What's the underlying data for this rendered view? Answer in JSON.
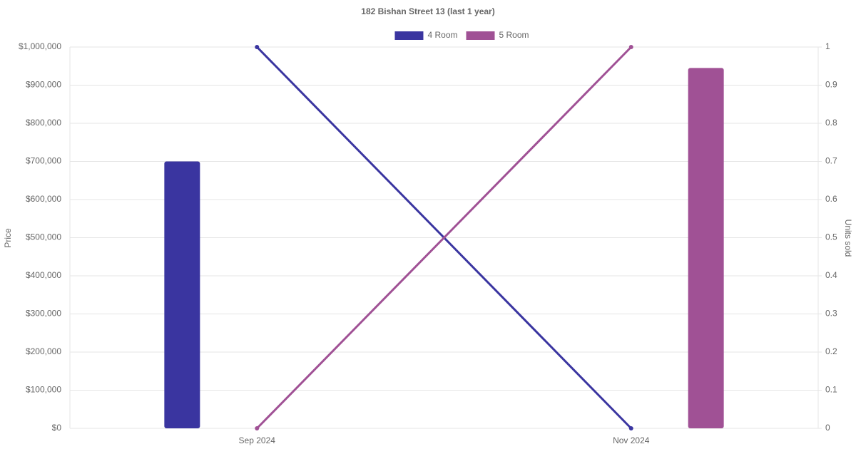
{
  "chart_data": {
    "type": "combo",
    "title": "182 Bishan Street 13 (last 1 year)",
    "y_label": "Price",
    "y2_label": "Units sold",
    "categories": [
      "Sep 2024",
      "Nov 2024"
    ],
    "series": [
      {
        "name": "4 Room",
        "color": "#3a35a0",
        "values": [
          700000,
          null
        ],
        "units_sold": [
          1,
          0
        ]
      },
      {
        "name": "5 Room",
        "color": "#a05195",
        "values": [
          null,
          945000
        ],
        "units_sold": [
          0,
          1
        ]
      }
    ],
    "ylim": [
      0,
      1000000
    ],
    "yticks": [
      {
        "value": 0,
        "label": "$0"
      },
      {
        "value": 100000,
        "label": "$100,000"
      },
      {
        "value": 200000,
        "label": "$200,000"
      },
      {
        "value": 300000,
        "label": "$300,000"
      },
      {
        "value": 400000,
        "label": "$400,000"
      },
      {
        "value": 500000,
        "label": "$500,000"
      },
      {
        "value": 600000,
        "label": "$600,000"
      },
      {
        "value": 700000,
        "label": "$700,000"
      },
      {
        "value": 800000,
        "label": "$800,000"
      },
      {
        "value": 900000,
        "label": "$900,000"
      },
      {
        "value": 1000000,
        "label": "$1,000,000"
      }
    ],
    "y2lim": [
      0,
      1
    ],
    "y2ticks": [
      0,
      0.1,
      0.2,
      0.3,
      0.4,
      0.5,
      0.6,
      0.7,
      0.8,
      0.9,
      1
    ],
    "grid": true,
    "legend": "top"
  }
}
